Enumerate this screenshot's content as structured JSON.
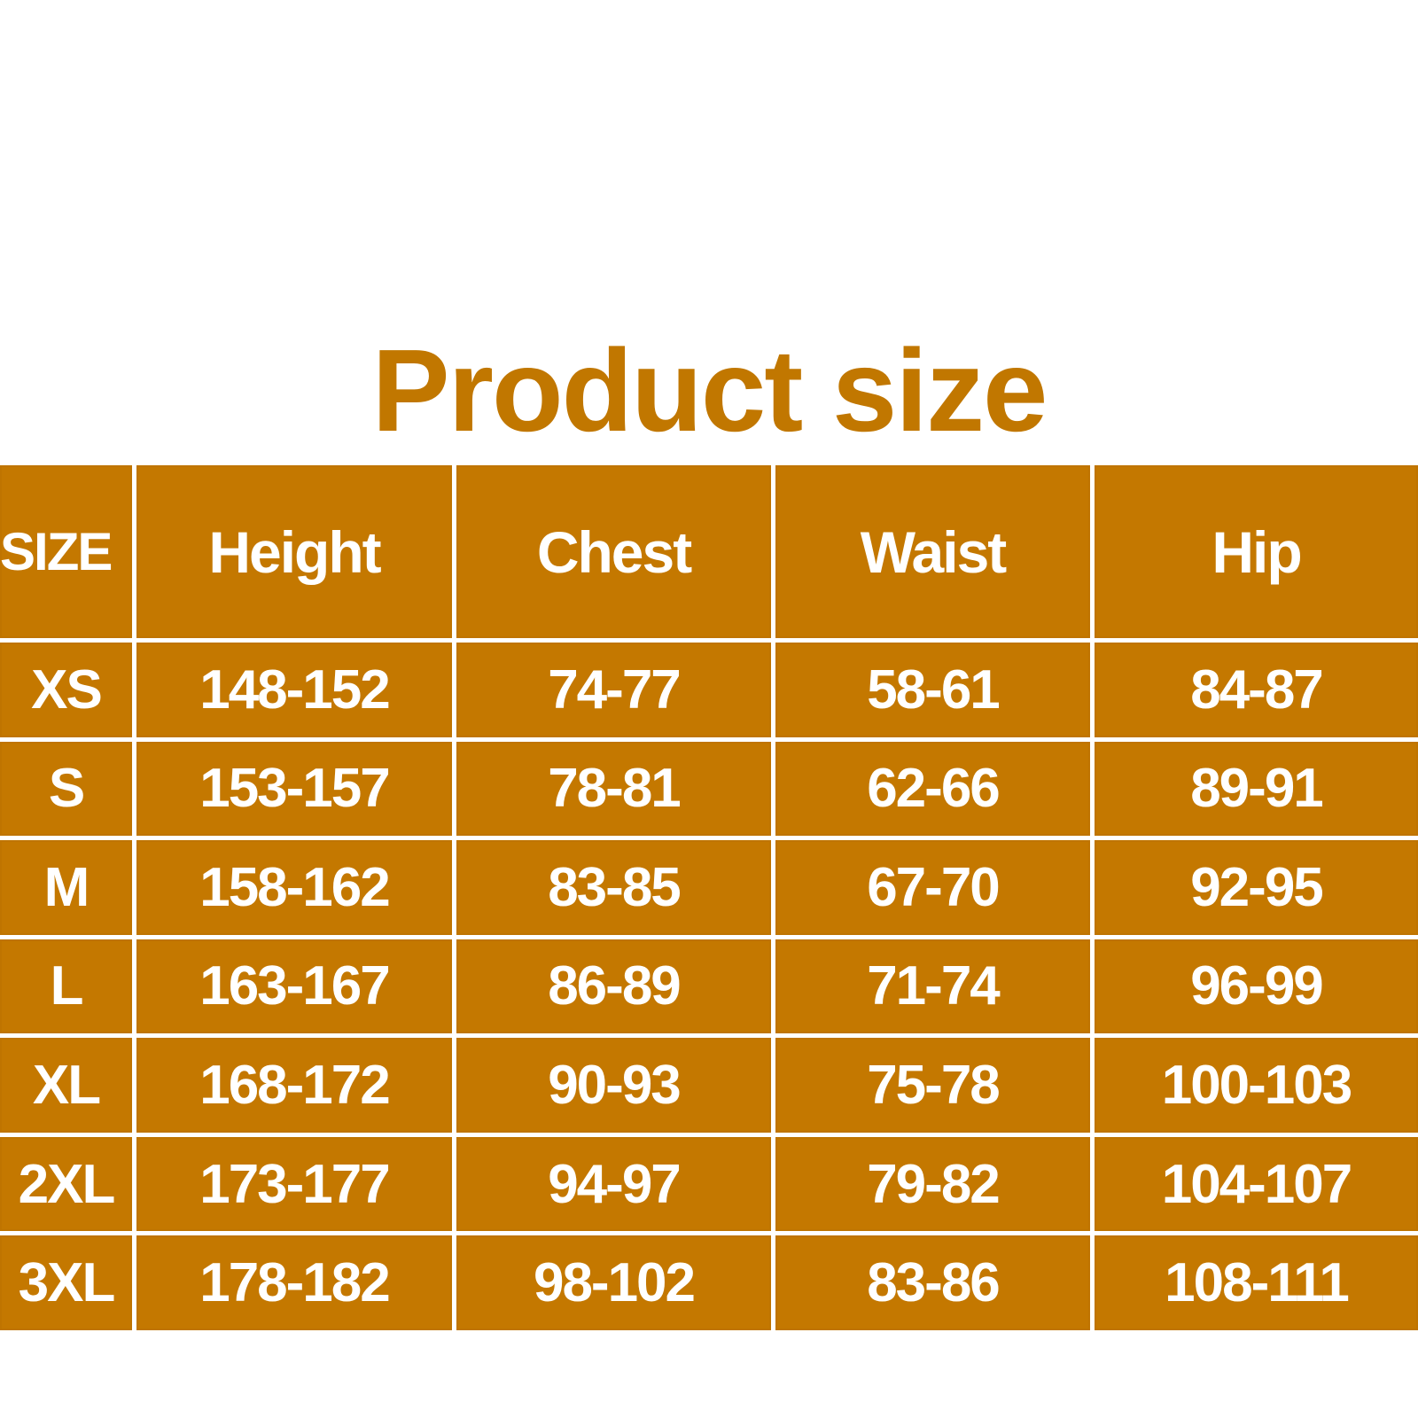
{
  "title": "Product size",
  "colors": {
    "accent": "#C47800",
    "text": "#FFFFFF"
  },
  "table": {
    "headers": [
      "SIZE",
      "Height",
      "Chest",
      "Waist",
      "Hip"
    ],
    "rows": [
      [
        "XS",
        "148-152",
        "74-77",
        "58-61",
        "84-87"
      ],
      [
        "S",
        "153-157",
        "78-81",
        "62-66",
        "89-91"
      ],
      [
        "M",
        "158-162",
        "83-85",
        "67-70",
        "92-95"
      ],
      [
        "L",
        "163-167",
        "86-89",
        "71-74",
        "96-99"
      ],
      [
        "XL",
        "168-172",
        "90-93",
        "75-78",
        "100-103"
      ],
      [
        "2XL",
        "173-177",
        "94-97",
        "79-82",
        "104-107"
      ],
      [
        "3XL",
        "178-182",
        "98-102",
        "83-86",
        "108-111"
      ]
    ]
  }
}
